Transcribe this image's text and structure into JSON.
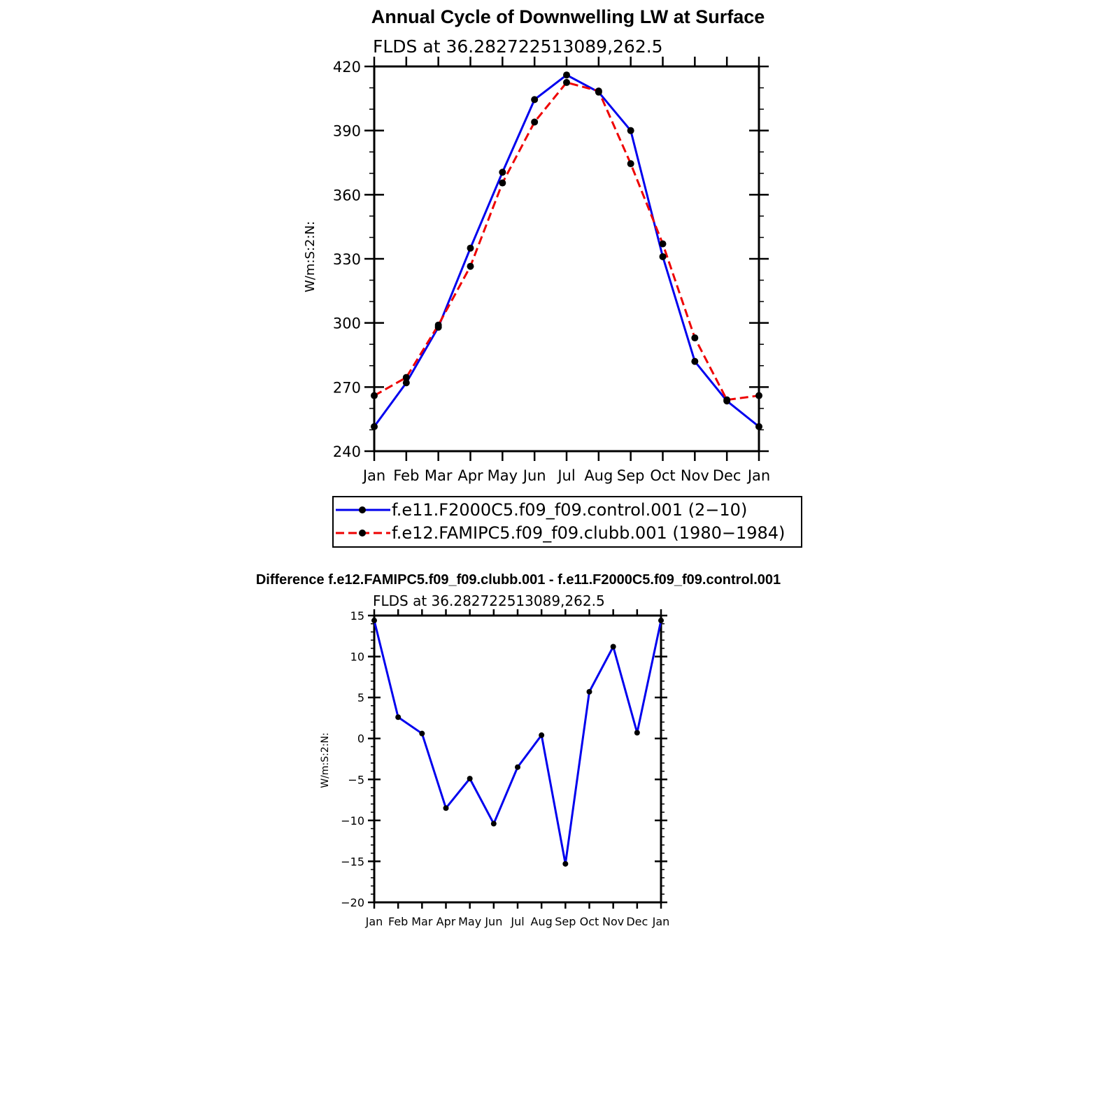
{
  "colors": {
    "control": "#0000ee",
    "clubb": "#ee0000",
    "marker": "#000000"
  },
  "chart_data": [
    {
      "type": "line",
      "title": "Annual Cycle of Downwelling LW at Surface",
      "subtitle": "FLDS at 36.282722513089,262.5",
      "ylabel": "W/m:S:2:N:",
      "xlabel": "",
      "categories": [
        "Jan",
        "Feb",
        "Mar",
        "Apr",
        "May",
        "Jun",
        "Jul",
        "Aug",
        "Sep",
        "Oct",
        "Nov",
        "Dec",
        "Jan"
      ],
      "ylim": [
        240,
        420
      ],
      "yticks": [
        "240",
        "270",
        "300",
        "330",
        "360",
        "390",
        "420"
      ],
      "legend_position": "bottom",
      "series": [
        {
          "name": "f.e11.F2000C5.f09_f09.control.001 (2−10)",
          "line_style": "solid",
          "color": "#0000ee",
          "values": [
            251.5,
            272,
            298,
            335,
            370.5,
            404.5,
            416,
            408,
            390,
            331,
            282,
            263.5,
            251.5
          ]
        },
        {
          "name": "f.e12.FAMIPC5.f09_f09.clubb.001 (1980−1984)",
          "line_style": "dashed",
          "color": "#ee0000",
          "values": [
            266,
            274.5,
            299,
            326.5,
            365.5,
            394,
            412.5,
            408.5,
            374.5,
            337,
            293,
            264,
            266
          ]
        }
      ]
    },
    {
      "type": "line",
      "title": "Difference f.e12.FAMIPC5.f09_f09.clubb.001 - f.e11.F2000C5.f09_f09.control.001",
      "subtitle": "FLDS at 36.282722513089,262.5",
      "ylabel": "W/m:S:2:N:",
      "xlabel": "",
      "categories": [
        "Jan",
        "Feb",
        "Mar",
        "Apr",
        "May",
        "Jun",
        "Jul",
        "Aug",
        "Sep",
        "Oct",
        "Nov",
        "Dec",
        "Jan"
      ],
      "ylim": [
        -20,
        15
      ],
      "yticks": [
        "−20",
        "−15",
        "−10",
        "−5",
        "0",
        "5",
        "10",
        "15"
      ],
      "series": [
        {
          "line_style": "solid",
          "color": "#0000ee",
          "values": [
            14.4,
            2.6,
            0.6,
            -8.5,
            -4.9,
            -10.4,
            -3.5,
            0.4,
            -15.3,
            5.7,
            11.2,
            0.7,
            14.4
          ]
        }
      ]
    }
  ]
}
